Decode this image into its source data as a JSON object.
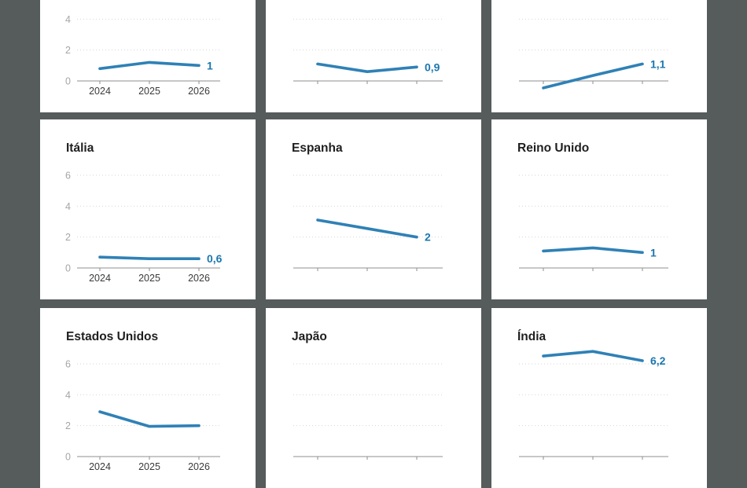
{
  "page": {
    "description": "Grid of small-multiple line charts of growth forecasts 2024-2026 by country; top and bottom rows cropped by viewport",
    "background_color": "#565b5b",
    "card_background_color": "#ffffff"
  },
  "colors": {
    "line": "#2f81b6",
    "value_label": "#1c77ae",
    "title": "#1f1f1f",
    "y_axis_label": "#a6a6a6",
    "x_axis_label": "#3a3a3a",
    "gridline": "#d6d6d6",
    "axis": "#8f8f8f"
  },
  "chart_data": [
    {
      "type": "line",
      "title": "",
      "x": [
        "2024",
        "2025",
        "2026"
      ],
      "values": [
        0.8,
        1.2,
        1.0
      ],
      "end_label": "1",
      "y_ticks": [
        0,
        2,
        4,
        6
      ],
      "ylim": [
        -0.6,
        7
      ],
      "grid": "dotted horizontal",
      "axis_labels_visible": true,
      "crop": "top"
    },
    {
      "type": "line",
      "title": "",
      "x": [
        "2024",
        "2025",
        "2026"
      ],
      "values": [
        1.1,
        0.6,
        0.9
      ],
      "end_label": "0,9",
      "y_ticks": [
        0,
        2,
        4,
        6
      ],
      "ylim": [
        -0.6,
        7
      ],
      "grid": "dotted horizontal",
      "axis_labels_visible": false,
      "crop": "top"
    },
    {
      "type": "line",
      "title": "",
      "x": [
        "2024",
        "2025",
        "2026"
      ],
      "values": [
        -0.45,
        0.35,
        1.1
      ],
      "end_label": "1,1",
      "y_ticks": [
        0,
        2,
        4,
        6
      ],
      "ylim": [
        -0.6,
        7
      ],
      "grid": "dotted horizontal",
      "axis_labels_visible": false,
      "crop": "top"
    },
    {
      "type": "line",
      "title": "Itália",
      "x": [
        "2024",
        "2025",
        "2026"
      ],
      "values": [
        0.7,
        0.6,
        0.6
      ],
      "end_label": "0,6",
      "y_ticks": [
        0,
        2,
        4,
        6
      ],
      "ylim": [
        -0.6,
        7
      ],
      "grid": "dotted horizontal",
      "axis_labels_visible": true,
      "crop": null
    },
    {
      "type": "line",
      "title": "Espanha",
      "x": [
        "2024",
        "2025",
        "2026"
      ],
      "values": [
        3.1,
        2.55,
        2.0
      ],
      "end_label": "2",
      "y_ticks": [
        0,
        2,
        4,
        6
      ],
      "ylim": [
        -0.6,
        7
      ],
      "grid": "dotted horizontal",
      "axis_labels_visible": false,
      "crop": null
    },
    {
      "type": "line",
      "title": "Reino Unido",
      "x": [
        "2024",
        "2025",
        "2026"
      ],
      "values": [
        1.1,
        1.3,
        1.0
      ],
      "end_label": "1",
      "y_ticks": [
        0,
        2,
        4,
        6
      ],
      "ylim": [
        -0.6,
        7
      ],
      "grid": "dotted horizontal",
      "axis_labels_visible": false,
      "crop": null
    },
    {
      "type": "line",
      "title": "Estados Unidos",
      "x": [
        "2024",
        "2025",
        "2026"
      ],
      "values": [
        2.9,
        1.95,
        2.0
      ],
      "end_label": "",
      "y_ticks": [
        0,
        2,
        4,
        6
      ],
      "ylim": [
        -0.6,
        7
      ],
      "grid": "dotted horizontal",
      "axis_labels_visible": true,
      "crop": "bottom"
    },
    {
      "type": "line",
      "title": "Japão",
      "x": [
        "2024",
        "2025",
        "2026"
      ],
      "values": [],
      "end_label": "",
      "y_ticks": [
        0,
        2,
        4,
        6
      ],
      "ylim": [
        -0.6,
        7
      ],
      "grid": "dotted horizontal",
      "axis_labels_visible": false,
      "crop": "bottom"
    },
    {
      "type": "line",
      "title": "Índia",
      "x": [
        "2024",
        "2025",
        "2026"
      ],
      "values": [
        6.5,
        6.8,
        6.2
      ],
      "end_label": "6,2",
      "y_ticks": [
        0,
        2,
        4,
        6
      ],
      "ylim": [
        -0.6,
        7
      ],
      "grid": "dotted horizontal",
      "axis_labels_visible": false,
      "crop": "bottom"
    }
  ]
}
